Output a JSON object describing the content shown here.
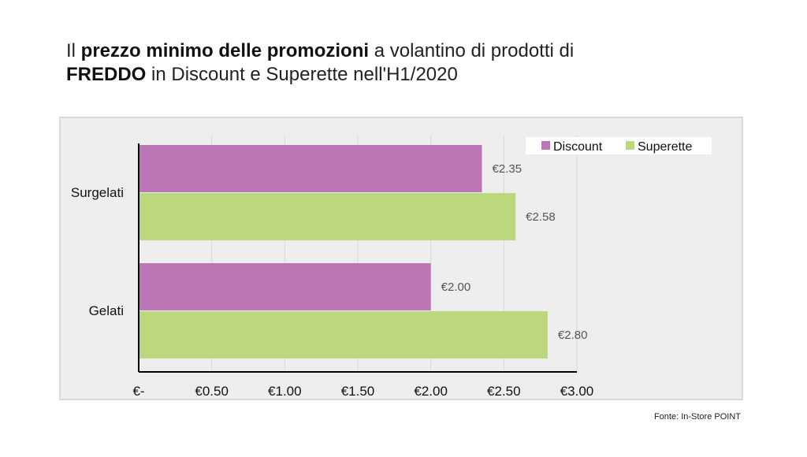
{
  "title": {
    "part1": "Il ",
    "bold1": "prezzo minimo delle promozioni",
    "part2": " a volantino di prodotti di",
    "bold2": "FREDDO",
    "part3": " in Discount e Superette nell'H1/2020"
  },
  "source": "Fonte: In-Store POINT",
  "chart_data": {
    "type": "bar",
    "orientation": "horizontal",
    "categories": [
      "Surgelati",
      "Gelati"
    ],
    "series": [
      {
        "name": "Discount",
        "values": [
          2.35,
          2.0
        ],
        "labels": [
          "€2.35",
          "€2.00"
        ],
        "color": "#bb77b5"
      },
      {
        "name": "Superette",
        "values": [
          2.58,
          2.8
        ],
        "labels": [
          "€2.58",
          "€2.80"
        ],
        "color": "#bcd87c"
      }
    ],
    "xlim": [
      0,
      3
    ],
    "xticks": [
      0,
      0.5,
      1,
      1.5,
      2,
      2.5,
      3
    ],
    "xtick_labels": [
      "€-",
      "€0.50",
      "€1.00",
      "€1.50",
      "€2.00",
      "€2.50",
      "€3.00"
    ],
    "grid": true,
    "legend_position": "top-right"
  }
}
